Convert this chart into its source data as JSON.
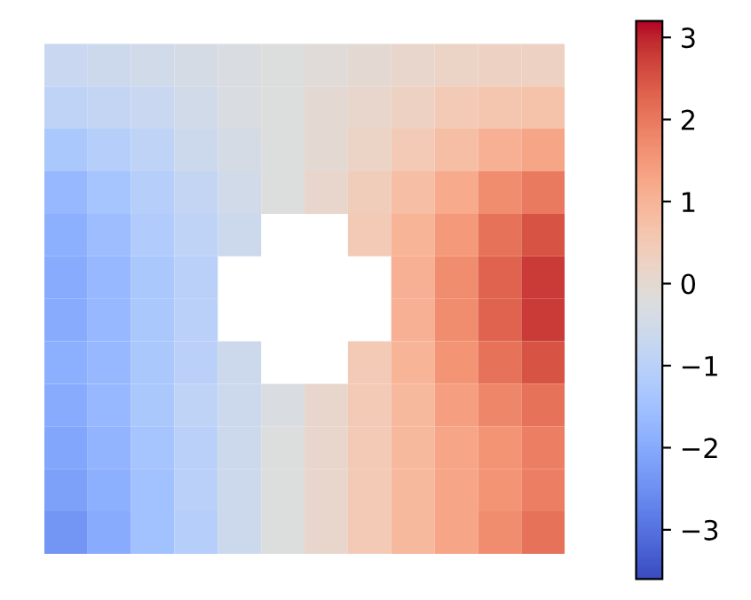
{
  "chart_data": {
    "type": "heatmap",
    "categories": [
      null,
      null,
      null,
      null,
      null,
      null,
      null,
      null,
      null,
      null,
      null,
      null
    ],
    "y_categories": [
      null,
      null,
      null,
      null,
      null,
      null,
      null,
      null,
      null,
      null,
      null,
      null
    ],
    "cells": [
      [
        -0.7,
        -0.6,
        -0.5,
        -0.4,
        -0.3,
        -0.2,
        -0.1,
        0.0,
        0.1,
        0.2,
        0.3,
        0.3
      ],
      [
        -0.9,
        -0.8,
        -0.7,
        -0.5,
        -0.3,
        -0.2,
        0.0,
        0.1,
        0.3,
        0.5,
        0.6,
        0.7
      ],
      [
        -1.3,
        -1.1,
        -0.9,
        -0.6,
        -0.4,
        -0.2,
        0.0,
        0.2,
        0.5,
        0.8,
        1.1,
        1.3
      ],
      [
        -1.7,
        -1.4,
        -1.1,
        -0.8,
        -0.5,
        -0.2,
        0.1,
        0.4,
        0.8,
        1.2,
        1.7,
        2.0
      ],
      [
        -1.9,
        -1.6,
        -1.2,
        -0.9,
        -0.6,
        null,
        null,
        0.5,
        1.0,
        1.5,
        2.1,
        2.5
      ],
      [
        -2.0,
        -1.7,
        -1.3,
        -1.0,
        null,
        null,
        null,
        null,
        1.1,
        1.7,
        2.3,
        2.8
      ],
      [
        -2.0,
        -1.7,
        -1.3,
        -1.0,
        null,
        null,
        null,
        null,
        1.1,
        1.7,
        2.3,
        2.8
      ],
      [
        -1.9,
        -1.7,
        -1.3,
        -1.0,
        -0.6,
        null,
        null,
        0.5,
        1.0,
        1.6,
        2.1,
        2.5
      ],
      [
        -2.0,
        -1.7,
        -1.3,
        -0.9,
        -0.6,
        -0.3,
        0.1,
        0.5,
        0.9,
        1.4,
        1.8,
        2.1
      ],
      [
        -2.1,
        -1.8,
        -1.4,
        -1.0,
        -0.6,
        -0.2,
        0.1,
        0.5,
        0.9,
        1.3,
        1.6,
        1.9
      ],
      [
        -2.2,
        -1.9,
        -1.5,
        -1.0,
        -0.6,
        -0.2,
        0.1,
        0.5,
        0.9,
        1.3,
        1.6,
        1.9
      ],
      [
        -2.4,
        -2.0,
        -1.5,
        -1.1,
        -0.6,
        -0.2,
        0.1,
        0.5,
        0.9,
        1.3,
        1.7,
        2.1
      ]
    ],
    "clim": [
      -3.6,
      3.2
    ],
    "cticks": [
      -3,
      -2,
      -1,
      0,
      1,
      2,
      3
    ]
  }
}
